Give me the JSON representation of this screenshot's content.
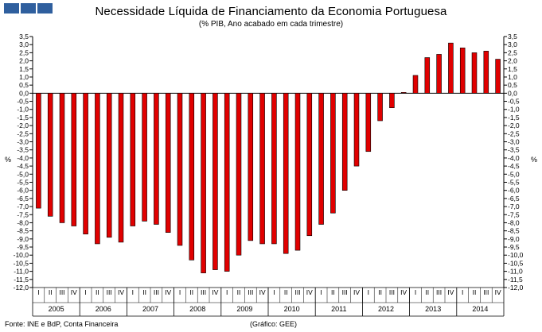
{
  "header": {
    "logo_icon": "three-blue-squares-logo",
    "title": "Necessidade Líquida de Financiamento da Economia Portuguesa",
    "subtitle": "(% PIB, Ano acabado em cada trimestre)"
  },
  "footer": {
    "source": "Fonte: INE e BdP, Conta Financeira",
    "credit": "(Gráfico: GEE)"
  },
  "chart_data": {
    "type": "bar",
    "ylabel_left": "%",
    "ylabel_right": "%",
    "ylim": [
      -12.0,
      3.5
    ],
    "ystep": 0.5,
    "y_decimal_separator": ",",
    "grid": false,
    "bar_color": "#e00000",
    "bar_edge_color": "#000000",
    "quarter_labels": [
      "I",
      "II",
      "III",
      "IV"
    ],
    "years": [
      "2005",
      "2006",
      "2007",
      "2008",
      "2009",
      "2010",
      "2011",
      "2012",
      "2013",
      "2014"
    ],
    "categories": [
      "2005 I",
      "2005 II",
      "2005 III",
      "2005 IV",
      "2006 I",
      "2006 II",
      "2006 III",
      "2006 IV",
      "2007 I",
      "2007 II",
      "2007 III",
      "2007 IV",
      "2008 I",
      "2008 II",
      "2008 III",
      "2008 IV",
      "2009 I",
      "2009 II",
      "2009 III",
      "2009 IV",
      "2010 I",
      "2010 II",
      "2010 III",
      "2010 IV",
      "2011 I",
      "2011 II",
      "2011 III",
      "2011 IV",
      "2012 I",
      "2012 II",
      "2012 III",
      "2012 IV",
      "2013 I",
      "2013 II",
      "2013 III",
      "2013 IV",
      "2014 I",
      "2014 II",
      "2014 III",
      "2014 IV"
    ],
    "values": [
      -7.1,
      -7.6,
      -8.0,
      -8.2,
      -8.7,
      -9.3,
      -8.9,
      -9.2,
      -8.2,
      -7.9,
      -8.1,
      -8.6,
      -9.4,
      -10.3,
      -11.1,
      -10.9,
      -11.0,
      -10.0,
      -9.1,
      -9.3,
      -9.3,
      -9.9,
      -9.7,
      -8.8,
      -8.1,
      -7.4,
      -6.0,
      -4.5,
      -3.6,
      -1.7,
      -0.9,
      0.05,
      1.1,
      2.2,
      2.4,
      3.1,
      2.8,
      2.5,
      2.6,
      2.1
    ]
  }
}
